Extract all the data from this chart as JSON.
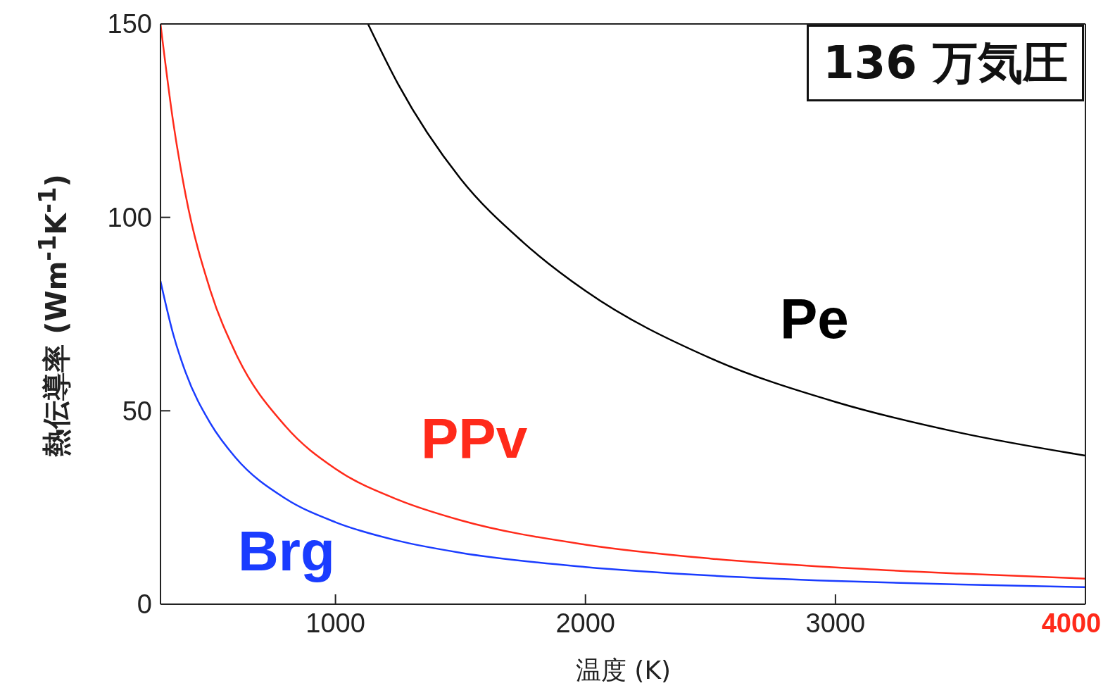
{
  "chart_data": {
    "type": "line",
    "xlabel": "温度 (K)",
    "ylabel": "熱伝導率 (Wm$^{-1}$K$^{-1}$)",
    "annotations": [
      "136 万気圧"
    ],
    "xlim": [
      300,
      4000
    ],
    "xticks": [
      1000,
      2000,
      3000,
      4000
    ],
    "ylim": [
      0,
      150
    ],
    "yticks": [
      0,
      50,
      100,
      150
    ],
    "grid": false,
    "legend": false,
    "marker": "none",
    "line_style": "solid",
    "series": [
      {
        "name": "Pe",
        "color": "#000000",
        "x": [
          1130,
          1250,
          1500,
          1750,
          2000,
          2500,
          3000,
          3500,
          4000
        ],
        "values": [
          150,
          134.5,
          110,
          93.6,
          81,
          63.6,
          52.3,
          44.3,
          38.4
        ]
      },
      {
        "name": "PPv",
        "color": "#ff2a1a",
        "x": [
          300,
          350,
          400,
          500,
          600,
          800,
          1000,
          1250,
          1500,
          2000,
          2500,
          3000,
          3500,
          4000
        ],
        "values": [
          150,
          125,
          106,
          81,
          65,
          46,
          35,
          27,
          21.7,
          15.4,
          11.8,
          9.5,
          7.9,
          6.6
        ]
      },
      {
        "name": "Brg",
        "color": "#1a3cff",
        "x": [
          300,
          350,
          400,
          500,
          600,
          800,
          1000,
          1250,
          1500,
          2000,
          2500,
          3000,
          3500,
          4000
        ],
        "values": [
          83.5,
          70,
          60,
          46.7,
          37.9,
          27.3,
          21.2,
          16.4,
          13.3,
          9.6,
          7.4,
          6.0,
          5.1,
          4.4
        ]
      }
    ]
  }
}
